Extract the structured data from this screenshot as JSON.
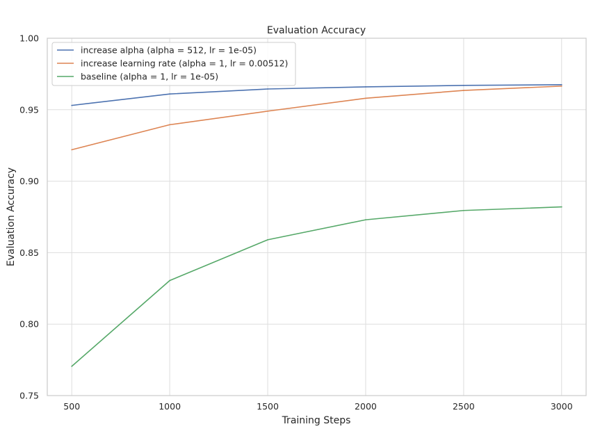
{
  "chart_data": {
    "type": "line",
    "title": "Evaluation Accuracy",
    "xlabel": "Training Steps",
    "ylabel": "Evaluation Accuracy",
    "x": [
      500,
      1000,
      1500,
      2000,
      2500,
      3000
    ],
    "xlim": [
      375,
      3125
    ],
    "ylim": [
      0.75,
      1.0
    ],
    "xticks": [
      500,
      1000,
      1500,
      2000,
      2500,
      3000
    ],
    "yticks": [
      0.75,
      0.8,
      0.85,
      0.9,
      0.95,
      1.0
    ],
    "xtick_labels": [
      "500",
      "1000",
      "1500",
      "2000",
      "2500",
      "3000"
    ],
    "ytick_labels": [
      "0.75",
      "0.80",
      "0.85",
      "0.90",
      "0.95",
      "1.00"
    ],
    "grid": true,
    "legend_position": "upper-left",
    "series": [
      {
        "name": "increase alpha (alpha = 512, lr = 1e-05)",
        "color": "#4c72b0",
        "values": [
          0.953,
          0.961,
          0.9645,
          0.966,
          0.967,
          0.9675
        ]
      },
      {
        "name": "increase learning rate (alpha = 1, lr = 0.00512)",
        "color": "#dd8452",
        "values": [
          0.922,
          0.9395,
          0.949,
          0.958,
          0.9635,
          0.9665
        ]
      },
      {
        "name": "baseline (alpha = 1, lr = 1e-05)",
        "color": "#55a868",
        "values": [
          0.7705,
          0.8305,
          0.859,
          0.873,
          0.8795,
          0.882
        ]
      }
    ]
  }
}
